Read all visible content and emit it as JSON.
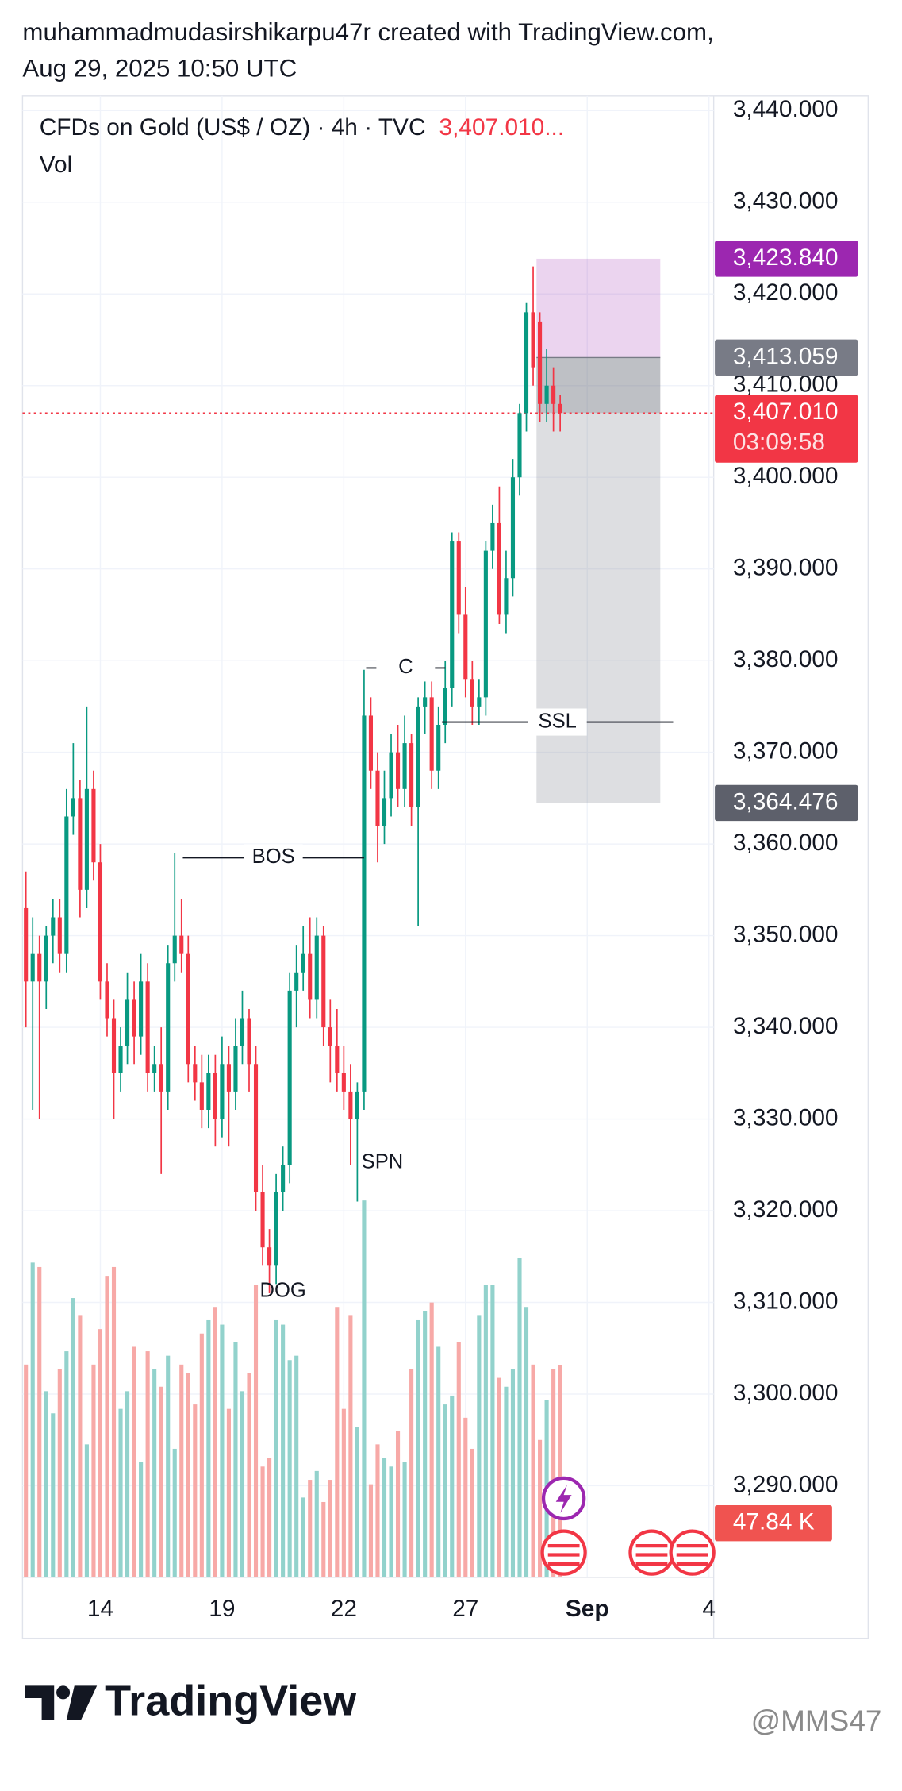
{
  "chart_data": {
    "type": "candlestick",
    "header": [
      "muhammadmudasirshikarpu47r created with TradingView.com,",
      "Aug 29, 2025 10:50 UTC"
    ],
    "legend_title": "CFDs on Gold (US$ / OZ) · 4h · TVC",
    "legend_price": "3,407.010...",
    "volume_title": "Vol",
    "ohlc": [
      [
        3353,
        3357,
        3340,
        3345
      ],
      [
        3345,
        3352,
        3331,
        3348
      ],
      [
        3348,
        3350,
        3330,
        3345
      ],
      [
        3345,
        3351,
        3342,
        3350
      ],
      [
        3350,
        3354,
        3347,
        3352
      ],
      [
        3352,
        3354,
        3346,
        3348
      ],
      [
        3348,
        3366,
        3346,
        3363
      ],
      [
        3363,
        3371,
        3361,
        3365
      ],
      [
        3365,
        3367,
        3352,
        3355
      ],
      [
        3355,
        3375,
        3353,
        3366
      ],
      [
        3366,
        3368,
        3356,
        3358
      ],
      [
        3358,
        3360,
        3343,
        3345
      ],
      [
        3345,
        3347,
        3339,
        3341
      ],
      [
        3341,
        3343,
        3330,
        3335
      ],
      [
        3335,
        3340,
        3333,
        3338
      ],
      [
        3338,
        3346,
        3336,
        3343
      ],
      [
        3343,
        3345,
        3336,
        3339
      ],
      [
        3339,
        3348,
        3337,
        3345
      ],
      [
        3345,
        3347,
        3333,
        3335
      ],
      [
        3335,
        3338,
        3333,
        3336
      ],
      [
        3336,
        3340,
        3324,
        3333
      ],
      [
        3333,
        3349,
        3331,
        3347
      ],
      [
        3347,
        3359,
        3345,
        3350
      ],
      [
        3350,
        3354,
        3346,
        3348
      ],
      [
        3348,
        3350,
        3334,
        3336
      ],
      [
        3336,
        3338,
        3332,
        3334
      ],
      [
        3334,
        3337,
        3329,
        3331
      ],
      [
        3331,
        3337,
        3329,
        3335
      ],
      [
        3335,
        3337,
        3327,
        3330
      ],
      [
        3330,
        3339,
        3328,
        3336
      ],
      [
        3336,
        3338,
        3327,
        3333
      ],
      [
        3333,
        3341,
        3331,
        3338
      ],
      [
        3338,
        3344,
        3336,
        3341
      ],
      [
        3341,
        3342,
        3333,
        3336
      ],
      [
        3336,
        3338,
        3320,
        3322
      ],
      [
        3322,
        3325,
        3314,
        3316
      ],
      [
        3316,
        3318,
        3311,
        3314
      ],
      [
        3314,
        3324,
        3312,
        3322
      ],
      [
        3322,
        3327,
        3320,
        3325
      ],
      [
        3325,
        3346,
        3323,
        3344
      ],
      [
        3344,
        3349,
        3340,
        3346
      ],
      [
        3346,
        3351,
        3344,
        3348
      ],
      [
        3348,
        3352,
        3341,
        3343
      ],
      [
        3343,
        3352,
        3341,
        3350
      ],
      [
        3350,
        3351,
        3338,
        3340
      ],
      [
        3340,
        3343,
        3334,
        3338
      ],
      [
        3338,
        3342,
        3333,
        3335
      ],
      [
        3335,
        3338,
        3331,
        3333
      ],
      [
        3333,
        3336,
        3325,
        3330
      ],
      [
        3330,
        3334,
        3321,
        3333
      ],
      [
        3333,
        3379,
        3331,
        3374
      ],
      [
        3374,
        3376,
        3366,
        3368
      ],
      [
        3368,
        3370,
        3358,
        3362
      ],
      [
        3362,
        3368,
        3360,
        3365
      ],
      [
        3365,
        3372,
        3363,
        3370
      ],
      [
        3370,
        3373,
        3364,
        3366
      ],
      [
        3366,
        3374,
        3364,
        3371
      ],
      [
        3371,
        3372,
        3362,
        3364
      ],
      [
        3364,
        3376,
        3351,
        3375
      ],
      [
        3375,
        3379,
        3372,
        3376
      ],
      [
        3376,
        3378,
        3366,
        3368
      ],
      [
        3368,
        3375,
        3366,
        3373
      ],
      [
        3373,
        3380,
        3371,
        3377
      ],
      [
        3377,
        3394,
        3375,
        3393
      ],
      [
        3393,
        3394,
        3383,
        3385
      ],
      [
        3385,
        3388,
        3376,
        3378
      ],
      [
        3378,
        3380,
        3373,
        3375
      ],
      [
        3375,
        3378,
        3373,
        3376
      ],
      [
        3376,
        3393,
        3374,
        3392
      ],
      [
        3392,
        3397,
        3390,
        3395
      ],
      [
        3395,
        3399,
        3384,
        3385
      ],
      [
        3385,
        3392,
        3383,
        3389
      ],
      [
        3389,
        3402,
        3387,
        3400
      ],
      [
        3400,
        3408,
        3398,
        3407
      ],
      [
        3407,
        3419,
        3405,
        3418
      ],
      [
        3418,
        3423,
        3410,
        3412
      ],
      [
        3417,
        3418,
        3406,
        3408
      ],
      [
        3408,
        3414,
        3406,
        3410
      ],
      [
        3410,
        3412,
        3405,
        3408
      ],
      [
        3408,
        3409,
        3405,
        3407.01
      ]
    ],
    "volumes": [
      48,
      71,
      70,
      42,
      37,
      47,
      51,
      63,
      59,
      30,
      48,
      56,
      68,
      70,
      38,
      42,
      52,
      26,
      51,
      47,
      43,
      50,
      29,
      48,
      46,
      39,
      55,
      58,
      61,
      57,
      38,
      53,
      42,
      46,
      66,
      25,
      27,
      58,
      57,
      49,
      50,
      18,
      22,
      24,
      17,
      22,
      61,
      38,
      59,
      34,
      85,
      21,
      30,
      27,
      25,
      33,
      26,
      47,
      58,
      60,
      62,
      52,
      39,
      41,
      53,
      36,
      29,
      59,
      66,
      66,
      45,
      43,
      47,
      72,
      61,
      48,
      31,
      40,
      47,
      47.84
    ],
    "volume_label": "47.84 K",
    "volume_lim": [
      0,
      100
    ],
    "up_color": "#089981",
    "down_color": "#f23645",
    "up_volume_color": "#92d2cc",
    "down_volume_color": "#f7a9a7",
    "xlim": [
      -0.5,
      101.7
    ],
    "xticks": [
      {
        "value": 11,
        "label": "14"
      },
      {
        "value": 29,
        "label": "19"
      },
      {
        "value": 47,
        "label": "22"
      },
      {
        "value": 65,
        "label": "27"
      },
      {
        "value": 83,
        "label": "Sep"
      },
      {
        "value": 101,
        "label": "4"
      }
    ],
    "ylim": [
      3280,
      3441.6
    ],
    "yticks": [
      {
        "value": 3290,
        "label": "3,290.000"
      },
      {
        "value": 3300,
        "label": "3,300.000"
      },
      {
        "value": 3310,
        "label": "3,310.000"
      },
      {
        "value": 3320,
        "label": "3,320.000"
      },
      {
        "value": 3330,
        "label": "3,330.000"
      },
      {
        "value": 3340,
        "label": "3,340.000"
      },
      {
        "value": 3350,
        "label": "3,350.000"
      },
      {
        "value": 3360,
        "label": "3,360.000"
      },
      {
        "value": 3370,
        "label": "3,370.000"
      },
      {
        "value": 3380,
        "label": "3,380.000"
      },
      {
        "value": 3390,
        "label": "3,390.000"
      },
      {
        "value": 3400,
        "label": "3,400.000"
      },
      {
        "value": 3410,
        "label": "3,410.000"
      },
      {
        "value": 3420,
        "label": "3,420.000"
      },
      {
        "value": 3430,
        "label": "3,430.000"
      },
      {
        "value": 3440,
        "label": "3,440.000"
      }
    ],
    "grid": true,
    "last": {
      "value": 3407.01,
      "label": "3,407.010",
      "countdown": "03:09:58",
      "color": "#f23645"
    },
    "position": {
      "from": 75.5,
      "to": 93.8,
      "target": {
        "value": 3423.84,
        "label": "3,423.840",
        "color": "#9c27b0"
      },
      "entry": {
        "value": 3413.059,
        "label": "3,413.059",
        "color": "#787b86"
      },
      "stop": {
        "value": 3364.476,
        "label": "3,364.476",
        "color": "#5d606b"
      }
    },
    "lines": [
      {
        "text": "BOS",
        "price": 3358.5,
        "from": 23.2,
        "to": 50
      },
      {
        "text": "C",
        "price": 3379.2,
        "from": 50.3,
        "to": 62
      },
      {
        "text": "SSL",
        "price": 3373.3,
        "from": 61.5,
        "to": 95.7
      }
    ],
    "notes": [
      {
        "text": "SPN",
        "price": 3325.2,
        "index": 52.7
      },
      {
        "text": "DOG",
        "price": 3311.2,
        "index": 38
      }
    ],
    "brand": "TradingView",
    "watermark": "@MMS47"
  }
}
